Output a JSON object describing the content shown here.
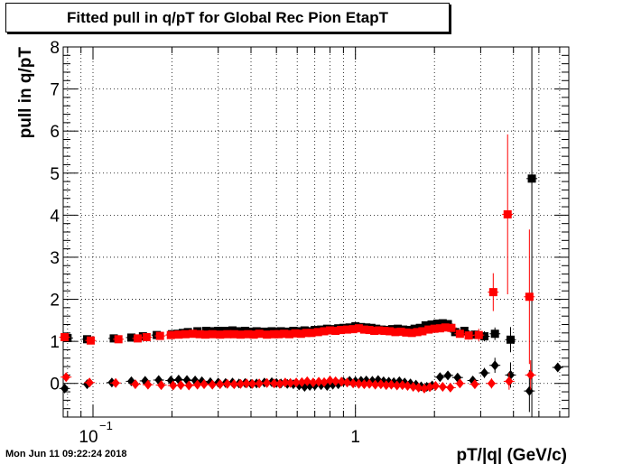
{
  "title": "Fitted pull in q/pT for Global Rec Pion EtapT",
  "timestamp": "Mon Jun 11 09:22:24 2018",
  "chart_data": {
    "type": "scatter",
    "title": "Fitted pull in q/pT for Global Rec Pion EtapT",
    "xlabel": "pT/|q| (GeV/c)",
    "ylabel": "pull in q/pT",
    "xscale": "log",
    "xlim": [
      0.077,
      6.5
    ],
    "ylim": [
      -0.8,
      8
    ],
    "grid": true,
    "x_tick_labels": [
      {
        "value": 0.1,
        "label": "10",
        "exp": "−1"
      },
      {
        "value": 1,
        "label": "1",
        "exp": ""
      }
    ],
    "y_ticks": [
      0,
      1,
      2,
      3,
      4,
      5,
      6,
      7,
      8
    ],
    "series": [
      {
        "marker": "square",
        "color": "#000000",
        "x": [
          0.08,
          0.095,
          0.12,
          0.14,
          0.155,
          0.175,
          0.2,
          0.21,
          0.22,
          0.23,
          0.25,
          0.27,
          0.28,
          0.3,
          0.32,
          0.34,
          0.36,
          0.38,
          0.4,
          0.42,
          0.45,
          0.48,
          0.5,
          0.52,
          0.55,
          0.58,
          0.61,
          0.64,
          0.67,
          0.7,
          0.74,
          0.78,
          0.82,
          0.86,
          0.9,
          0.95,
          1.0,
          1.05,
          1.1,
          1.15,
          1.2,
          1.26,
          1.32,
          1.38,
          1.45,
          1.52,
          1.6,
          1.68,
          1.76,
          1.85,
          1.95,
          2.05,
          2.15,
          2.25,
          2.4,
          2.6,
          2.85,
          3.1,
          3.4,
          3.9,
          4.7
        ],
        "y": [
          1.08,
          1.05,
          1.07,
          1.09,
          1.12,
          1.15,
          1.17,
          1.18,
          1.2,
          1.22,
          1.24,
          1.25,
          1.24,
          1.25,
          1.25,
          1.26,
          1.24,
          1.25,
          1.23,
          1.24,
          1.23,
          1.24,
          1.23,
          1.24,
          1.23,
          1.25,
          1.24,
          1.26,
          1.24,
          1.27,
          1.28,
          1.3,
          1.29,
          1.31,
          1.32,
          1.33,
          1.36,
          1.34,
          1.33,
          1.32,
          1.3,
          1.28,
          1.27,
          1.29,
          1.3,
          1.28,
          1.27,
          1.3,
          1.32,
          1.38,
          1.4,
          1.42,
          1.43,
          1.41,
          1.22,
          1.25,
          1.16,
          1.12,
          1.18,
          1.04,
          4.87
        ],
        "err": [
          0.03,
          0.02,
          0.02,
          0.02,
          0.02,
          0.02,
          0.02,
          0.02,
          0.02,
          0.02,
          0.02,
          0.02,
          0.02,
          0.02,
          0.02,
          0.02,
          0.02,
          0.02,
          0.02,
          0.02,
          0.02,
          0.02,
          0.02,
          0.02,
          0.02,
          0.02,
          0.02,
          0.02,
          0.02,
          0.02,
          0.02,
          0.02,
          0.02,
          0.02,
          0.02,
          0.02,
          0.03,
          0.03,
          0.03,
          0.03,
          0.03,
          0.03,
          0.03,
          0.03,
          0.03,
          0.03,
          0.03,
          0.04,
          0.04,
          0.05,
          0.05,
          0.06,
          0.06,
          0.07,
          0.06,
          0.08,
          0.1,
          0.12,
          0.15,
          0.3,
          8.0
        ]
      },
      {
        "marker": "square",
        "color": "#ff0000",
        "x": [
          0.078,
          0.098,
          0.125,
          0.148,
          0.16,
          0.18,
          0.198,
          0.212,
          0.225,
          0.24,
          0.255,
          0.268,
          0.285,
          0.305,
          0.325,
          0.345,
          0.365,
          0.39,
          0.41,
          0.43,
          0.46,
          0.49,
          0.51,
          0.535,
          0.56,
          0.59,
          0.62,
          0.65,
          0.68,
          0.72,
          0.76,
          0.8,
          0.84,
          0.88,
          0.93,
          0.98,
          1.03,
          1.08,
          1.13,
          1.18,
          1.23,
          1.29,
          1.35,
          1.42,
          1.49,
          1.56,
          1.64,
          1.72,
          1.8,
          1.9,
          2.0,
          2.1,
          2.2,
          2.32,
          2.5,
          2.7,
          2.95,
          3.35,
          3.8,
          4.6
        ],
        "y": [
          1.1,
          1.02,
          1.05,
          1.07,
          1.1,
          1.13,
          1.15,
          1.16,
          1.17,
          1.18,
          1.17,
          1.16,
          1.17,
          1.16,
          1.17,
          1.17,
          1.16,
          1.17,
          1.16,
          1.18,
          1.16,
          1.17,
          1.17,
          1.18,
          1.17,
          1.19,
          1.18,
          1.2,
          1.2,
          1.22,
          1.24,
          1.26,
          1.25,
          1.27,
          1.28,
          1.29,
          1.31,
          1.28,
          1.27,
          1.25,
          1.26,
          1.25,
          1.24,
          1.22,
          1.23,
          1.21,
          1.2,
          1.22,
          1.24,
          1.28,
          1.3,
          1.31,
          1.33,
          1.32,
          1.18,
          1.14,
          1.15,
          2.17,
          4.02,
          2.06
        ],
        "err": [
          0.03,
          0.02,
          0.02,
          0.02,
          0.02,
          0.02,
          0.02,
          0.02,
          0.02,
          0.02,
          0.02,
          0.02,
          0.02,
          0.02,
          0.02,
          0.02,
          0.02,
          0.02,
          0.02,
          0.02,
          0.02,
          0.02,
          0.02,
          0.02,
          0.02,
          0.02,
          0.02,
          0.02,
          0.02,
          0.02,
          0.02,
          0.02,
          0.02,
          0.02,
          0.02,
          0.02,
          0.03,
          0.03,
          0.03,
          0.03,
          0.03,
          0.03,
          0.03,
          0.03,
          0.03,
          0.03,
          0.03,
          0.04,
          0.04,
          0.05,
          0.05,
          0.06,
          0.06,
          0.07,
          0.08,
          0.1,
          0.15,
          0.45,
          1.9,
          1.6
        ]
      },
      {
        "marker": "diamond",
        "color": "#000000",
        "x": [
          0.078,
          0.095,
          0.118,
          0.14,
          0.158,
          0.178,
          0.198,
          0.212,
          0.228,
          0.245,
          0.26,
          0.28,
          0.3,
          0.32,
          0.34,
          0.36,
          0.38,
          0.4,
          0.42,
          0.45,
          0.48,
          0.5,
          0.52,
          0.55,
          0.58,
          0.61,
          0.64,
          0.67,
          0.7,
          0.74,
          0.78,
          0.82,
          0.86,
          0.9,
          0.95,
          1.0,
          1.05,
          1.1,
          1.16,
          1.22,
          1.28,
          1.34,
          1.4,
          1.47,
          1.54,
          1.62,
          1.7,
          1.78,
          1.87,
          1.96,
          2.1,
          2.25,
          2.45,
          2.8,
          3.1,
          3.4,
          3.9,
          4.6,
          5.9
        ],
        "y": [
          -0.12,
          -0.02,
          0.02,
          0.05,
          0.06,
          0.08,
          0.07,
          0.09,
          0.08,
          0.07,
          0.05,
          0.03,
          0.02,
          0.01,
          0.02,
          0.0,
          0.01,
          -0.01,
          0.0,
          0.02,
          0.03,
          0.01,
          0.0,
          -0.01,
          -0.02,
          -0.05,
          -0.08,
          -0.06,
          -0.05,
          -0.04,
          -0.06,
          -0.03,
          -0.02,
          0.04,
          0.06,
          0.05,
          0.06,
          0.07,
          0.06,
          0.08,
          0.05,
          0.04,
          0.03,
          0.05,
          0.02,
          0.0,
          -0.03,
          -0.07,
          -0.08,
          -0.05,
          0.15,
          0.19,
          0.14,
          0.07,
          0.25,
          0.43,
          0.2,
          -0.18,
          0.38
        ],
        "err": [
          0.03,
          0.02,
          0.02,
          0.02,
          0.02,
          0.02,
          0.02,
          0.02,
          0.02,
          0.02,
          0.02,
          0.02,
          0.02,
          0.02,
          0.02,
          0.02,
          0.02,
          0.02,
          0.02,
          0.02,
          0.02,
          0.02,
          0.02,
          0.02,
          0.02,
          0.02,
          0.02,
          0.02,
          0.02,
          0.02,
          0.02,
          0.02,
          0.02,
          0.02,
          0.02,
          0.03,
          0.03,
          0.03,
          0.03,
          0.03,
          0.03,
          0.03,
          0.03,
          0.03,
          0.03,
          0.03,
          0.03,
          0.04,
          0.04,
          0.04,
          0.05,
          0.05,
          0.06,
          0.08,
          0.12,
          0.18,
          0.3,
          0.5,
          0.0
        ]
      },
      {
        "marker": "diamond",
        "color": "#ff0000",
        "x": [
          0.079,
          0.097,
          0.122,
          0.145,
          0.162,
          0.182,
          0.202,
          0.216,
          0.232,
          0.25,
          0.265,
          0.285,
          0.305,
          0.325,
          0.345,
          0.365,
          0.385,
          0.405,
          0.43,
          0.46,
          0.49,
          0.515,
          0.54,
          0.565,
          0.595,
          0.625,
          0.655,
          0.69,
          0.725,
          0.76,
          0.8,
          0.84,
          0.885,
          0.93,
          0.98,
          1.03,
          1.08,
          1.13,
          1.19,
          1.25,
          1.31,
          1.37,
          1.44,
          1.51,
          1.58,
          1.66,
          1.74,
          1.83,
          1.92,
          2.02,
          2.15,
          2.3,
          2.5,
          2.85,
          3.3,
          3.85,
          4.65
        ],
        "y": [
          0.15,
          0.02,
          0.01,
          -0.02,
          -0.03,
          -0.04,
          -0.05,
          -0.04,
          -0.05,
          -0.03,
          -0.02,
          -0.03,
          -0.02,
          -0.01,
          -0.02,
          -0.01,
          0.0,
          -0.01,
          0.0,
          0.01,
          0.0,
          -0.01,
          0.02,
          0.01,
          0.02,
          0.03,
          0.05,
          0.02,
          0.04,
          0.03,
          0.07,
          0.05,
          0.04,
          0.02,
          0.0,
          -0.01,
          -0.02,
          -0.01,
          -0.03,
          -0.02,
          -0.04,
          -0.03,
          -0.05,
          -0.04,
          -0.06,
          -0.08,
          -0.1,
          -0.12,
          -0.09,
          -0.06,
          -0.08,
          -0.1,
          0.0,
          -0.02,
          0.0,
          0.05,
          0.2
        ],
        "err": [
          0.03,
          0.02,
          0.02,
          0.02,
          0.02,
          0.02,
          0.02,
          0.02,
          0.02,
          0.02,
          0.02,
          0.02,
          0.02,
          0.02,
          0.02,
          0.02,
          0.02,
          0.02,
          0.02,
          0.02,
          0.02,
          0.02,
          0.02,
          0.02,
          0.02,
          0.02,
          0.02,
          0.02,
          0.02,
          0.02,
          0.02,
          0.02,
          0.02,
          0.02,
          0.02,
          0.03,
          0.03,
          0.03,
          0.03,
          0.03,
          0.03,
          0.03,
          0.03,
          0.03,
          0.03,
          0.03,
          0.03,
          0.04,
          0.04,
          0.04,
          0.05,
          0.05,
          0.06,
          0.08,
          0.12,
          0.2,
          0.35
        ]
      }
    ]
  }
}
